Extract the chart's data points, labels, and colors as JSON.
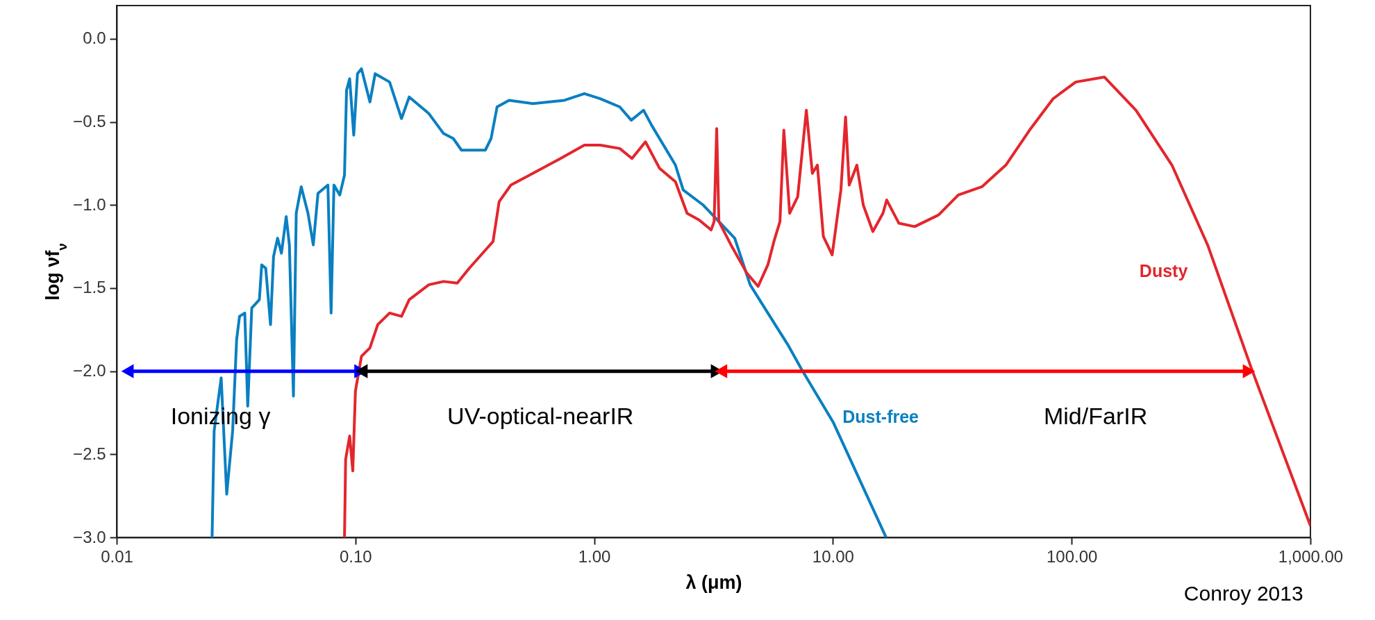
{
  "chart_data": {
    "type": "line",
    "xlabel": "λ (μm)",
    "ylabel": "log νf$_{ν}$",
    "log": "x",
    "xlim": [
      0.01,
      1000
    ],
    "ylim": [
      -3,
      0.2
    ],
    "xticks": [
      {
        "value": 0.01,
        "label": "0.01"
      },
      {
        "value": 0.1,
        "label": "0.10"
      },
      {
        "value": 1,
        "label": "1.00"
      },
      {
        "value": 10,
        "label": "10.00"
      },
      {
        "value": 100,
        "label": "100.00"
      },
      {
        "value": 1000,
        "label": "1,000.00"
      }
    ],
    "yticks": [
      {
        "value": 0,
        "label": "0.0"
      },
      {
        "value": -0.5,
        "label": "−0.5"
      },
      {
        "value": -1,
        "label": "−1.0"
      },
      {
        "value": -1.5,
        "label": "−1.5"
      },
      {
        "value": -2,
        "label": "−2.0"
      },
      {
        "value": -2.5,
        "label": "−2.5"
      },
      {
        "value": -3,
        "label": "−3.0"
      }
    ],
    "series": [
      {
        "name": "Dust-free",
        "color": "#0a7fc1",
        "x": [
          0.0251,
          0.0256,
          0.0274,
          0.0289,
          0.0306,
          0.0318,
          0.0327,
          0.0344,
          0.0354,
          0.0368,
          0.0396,
          0.0405,
          0.0421,
          0.0441,
          0.0454,
          0.0472,
          0.049,
          0.0513,
          0.0529,
          0.055,
          0.0565,
          0.0593,
          0.0633,
          0.0666,
          0.0697,
          0.0767,
          0.0791,
          0.0813,
          0.086,
          0.09,
          0.0918,
          0.0946,
          0.0984,
          0.102,
          0.106,
          0.115,
          0.121,
          0.139,
          0.156,
          0.168,
          0.203,
          0.234,
          0.257,
          0.278,
          0.35,
          0.37,
          0.392,
          0.44,
          0.553,
          0.751,
          0.91,
          1.06,
          1.28,
          1.43,
          1.61,
          1.74,
          2.19,
          2.36,
          2.86,
          3.33,
          3.88,
          4.5,
          5.34,
          6.47,
          7.4,
          10.05,
          16.7
        ],
        "values": [
          -3.0,
          -2.36,
          -2.04,
          -2.74,
          -2.36,
          -1.81,
          -1.67,
          -1.65,
          -2.21,
          -1.62,
          -1.57,
          -1.36,
          -1.38,
          -1.72,
          -1.31,
          -1.2,
          -1.29,
          -1.07,
          -1.24,
          -2.15,
          -1.05,
          -0.89,
          -1.05,
          -1.24,
          -0.93,
          -0.88,
          -1.65,
          -0.88,
          -0.94,
          -0.82,
          -0.31,
          -0.24,
          -0.58,
          -0.21,
          -0.18,
          -0.38,
          -0.21,
          -0.26,
          -0.48,
          -0.35,
          -0.45,
          -0.57,
          -0.6,
          -0.67,
          -0.67,
          -0.6,
          -0.41,
          -0.37,
          -0.39,
          -0.37,
          -0.33,
          -0.36,
          -0.41,
          -0.49,
          -0.43,
          -0.52,
          -0.76,
          -0.91,
          -1.0,
          -1.1,
          -1.2,
          -1.48,
          -1.65,
          -1.84,
          -1.99,
          -2.31,
          -3.0
        ]
      },
      {
        "name": "Dusty",
        "color": "#e3262d",
        "x": [
          0.09,
          0.091,
          0.0946,
          0.0975,
          0.1,
          0.106,
          0.115,
          0.124,
          0.139,
          0.156,
          0.168,
          0.203,
          0.234,
          0.267,
          0.3,
          0.356,
          0.377,
          0.4,
          0.448,
          0.553,
          0.723,
          0.91,
          1.06,
          1.28,
          1.44,
          1.64,
          1.88,
          2.19,
          2.45,
          2.75,
          3.09,
          3.18,
          3.26,
          3.33,
          3.74,
          4.36,
          4.86,
          5.34,
          5.66,
          6.0,
          6.23,
          6.59,
          7.12,
          7.74,
          8.2,
          8.61,
          9.12,
          9.93,
          10.8,
          11.3,
          11.7,
          12.6,
          13.4,
          14.7,
          16.2,
          16.8,
          18.9,
          22.0,
          27.7,
          33.5,
          42.1,
          53.0,
          66.6,
          83.7,
          104,
          137,
          186,
          263,
          371,
          565,
          1000
        ],
        "values": [
          -3.0,
          -2.53,
          -2.39,
          -2.6,
          -2.12,
          -1.91,
          -1.86,
          -1.72,
          -1.65,
          -1.67,
          -1.57,
          -1.48,
          -1.46,
          -1.47,
          -1.38,
          -1.26,
          -1.22,
          -0.98,
          -0.88,
          -0.81,
          -0.72,
          -0.64,
          -0.64,
          -0.66,
          -0.72,
          -0.62,
          -0.78,
          -0.86,
          -1.05,
          -1.09,
          -1.15,
          -1.1,
          -0.54,
          -1.1,
          -1.24,
          -1.41,
          -1.49,
          -1.36,
          -1.22,
          -1.1,
          -0.55,
          -1.05,
          -0.95,
          -0.43,
          -0.81,
          -0.76,
          -1.19,
          -1.3,
          -0.91,
          -0.47,
          -0.88,
          -0.76,
          -1.0,
          -1.16,
          -1.05,
          -0.97,
          -1.11,
          -1.13,
          -1.06,
          -0.94,
          -0.89,
          -0.76,
          -0.55,
          -0.36,
          -0.26,
          -0.23,
          -0.43,
          -0.76,
          -1.24,
          -1.98,
          -2.93
        ]
      },
      {
        "color": "#0000ff",
        "marker": "triangle",
        "x": [
          0.0111,
          0.105
        ],
        "values": [
          -2,
          -2
        ]
      },
      {
        "color": "#000000",
        "marker": "triangle",
        "x": [
          0.106,
          3.27
        ],
        "values": [
          -2,
          -2
        ]
      },
      {
        "color": "#ff0000",
        "marker": "triangle",
        "x": [
          3.4,
          553
        ],
        "values": [
          -2,
          -2
        ]
      }
    ],
    "annotations": [
      "Ionizing γ",
      "UV-optical-nearIR",
      "Mid/FarIR",
      "Conroy  2013"
    ]
  }
}
